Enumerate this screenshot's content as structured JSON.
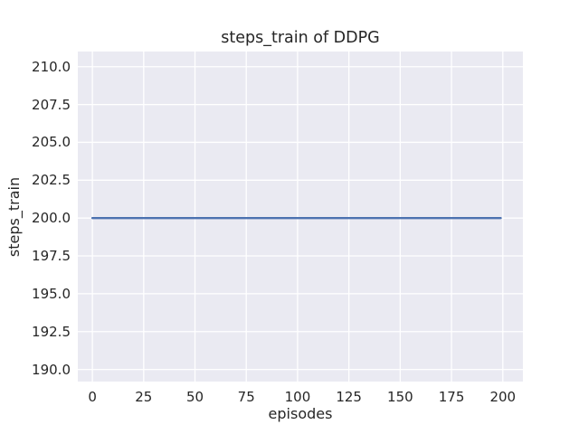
{
  "figure": {
    "background": "#ffffff"
  },
  "chart_data": {
    "type": "line",
    "title": "steps_train of DDPG",
    "xlabel": "episodes",
    "ylabel": "steps_train",
    "series": [
      {
        "name": "steps_train",
        "color": "#4c72b0",
        "x": [
          0,
          199
        ],
        "y": [
          200,
          200
        ]
      }
    ],
    "xticks": [
      0,
      25,
      50,
      75,
      100,
      125,
      150,
      175,
      200
    ],
    "xtick_labels": [
      "0",
      "25",
      "50",
      "75",
      "100",
      "125",
      "150",
      "175",
      "200"
    ],
    "yticks": [
      190.0,
      192.5,
      195.0,
      197.5,
      200.0,
      202.5,
      205.0,
      207.5,
      210.0
    ],
    "ytick_labels": [
      "190.0",
      "192.5",
      "195.0",
      "197.5",
      "200.0",
      "202.5",
      "205.0",
      "207.5",
      "210.0"
    ],
    "xlim": [
      -7.1,
      209.8
    ],
    "ylim": [
      189.2,
      211.0
    ],
    "grid": true,
    "legend_position": "none",
    "plot_background": "#eaeaf2",
    "grid_color": "#ffffff",
    "text_color": "#262626"
  }
}
